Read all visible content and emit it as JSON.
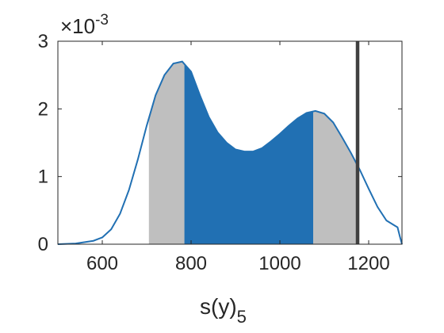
{
  "chart_data": {
    "type": "area",
    "xlabel": "s(y)",
    "xlabel_subscript": "5",
    "y_multiplier": {
      "base": "×10",
      "exponent": "-3"
    },
    "xlim": [
      500,
      1275
    ],
    "ylim": [
      0,
      3
    ],
    "y_scale_factor": 0.001,
    "xticks": [
      600,
      800,
      1000,
      1200
    ],
    "xtick_labels": [
      "600",
      "800",
      "1000",
      "1200"
    ],
    "yticks": [
      0,
      1,
      2,
      3
    ],
    "ytick_labels": [
      "0",
      "1",
      "2",
      "3"
    ],
    "grid": false,
    "density_curve": {
      "x": [
        500,
        540,
        580,
        600,
        620,
        640,
        660,
        680,
        700,
        720,
        740,
        760,
        780,
        800,
        820,
        840,
        860,
        880,
        900,
        920,
        940,
        960,
        980,
        1000,
        1020,
        1040,
        1060,
        1080,
        1100,
        1120,
        1140,
        1160,
        1180,
        1200,
        1220,
        1240,
        1260,
        1265,
        1270,
        1275
      ],
      "y": [
        0.0,
        0.01,
        0.05,
        0.1,
        0.22,
        0.45,
        0.8,
        1.25,
        1.75,
        2.2,
        2.5,
        2.67,
        2.7,
        2.55,
        2.2,
        1.88,
        1.65,
        1.5,
        1.4,
        1.37,
        1.37,
        1.42,
        1.52,
        1.63,
        1.75,
        1.86,
        1.94,
        1.97,
        1.93,
        1.8,
        1.58,
        1.35,
        1.1,
        0.82,
        0.55,
        0.35,
        0.27,
        0.25,
        0.12,
        0.0
      ]
    },
    "gray_region": {
      "x_range": [
        705,
        1175
      ]
    },
    "blue_region": {
      "x_range": [
        785,
        1075
      ]
    },
    "vertical_line": {
      "x": 1175
    },
    "colors": {
      "curve": "#2170b3",
      "blue_fill": "#2170b3",
      "gray_fill": "#bfbfbf",
      "vertical_line": "#404040",
      "axis": "#262626"
    }
  }
}
